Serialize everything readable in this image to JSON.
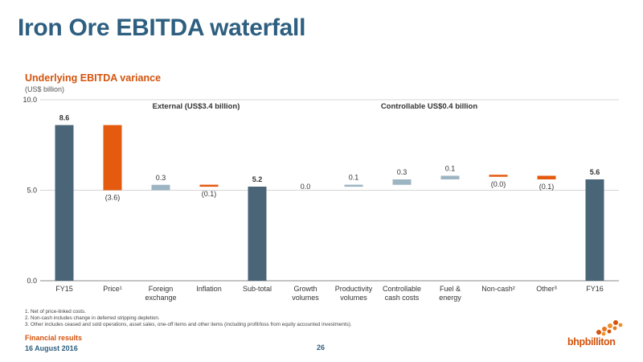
{
  "slide": {
    "title": "Iron Ore EBITDA waterfall",
    "subtitle": "Underlying EBITDA variance",
    "unit": "(US$ billion)",
    "footnotes": [
      "1.  Net of price-linked costs.",
      "2.  Non-cash includes change in deferred stripping depletion.",
      "3.  Other includes ceased and sold operations, asset sales, one-off items and other items (including profit/loss from equity accounted investments)."
    ],
    "footer_label": "Financial results",
    "footer_date": "16 August 2016",
    "page_number": "26",
    "logo_text": "bhpbilliton"
  },
  "chart_data": {
    "type": "waterfall",
    "title": "",
    "xlabel": "",
    "ylabel": "",
    "ylim": [
      0,
      10
    ],
    "yticks": [
      "0.0",
      "5.0",
      "10.0"
    ],
    "grid": true,
    "annotations": [
      {
        "text": "External (US$3.4 billion)",
        "group": "external"
      },
      {
        "text": "Controllable US$0.4 billion",
        "group": "controllable"
      }
    ],
    "colors": {
      "total": "#4a6478",
      "negative": "#e45a0e",
      "positive": "#9db5c3",
      "gridline": "#c8c8c8"
    },
    "bars": [
      {
        "category": "FY15",
        "kind": "total",
        "start": 0,
        "end": 8.6,
        "label": "8.6",
        "label_bold": true
      },
      {
        "category": "Price¹",
        "kind": "negative",
        "start": 8.6,
        "end": 5.0,
        "label": "(3.6)",
        "label_pos": "below"
      },
      {
        "category": "Foreign exchange",
        "kind": "positive",
        "start": 5.0,
        "end": 5.3,
        "label": "0.3"
      },
      {
        "category": "Inflation",
        "kind": "negative",
        "start": 5.3,
        "end": 5.2,
        "label": "(0.1)",
        "label_pos": "below"
      },
      {
        "category": "Sub-total",
        "kind": "total",
        "start": 0,
        "end": 5.2,
        "label": "5.2",
        "label_bold": true
      },
      {
        "category": "Growth volumes",
        "kind": "positive",
        "start": 5.2,
        "end": 5.2,
        "label": "0.0"
      },
      {
        "category": "Productivity volumes",
        "kind": "positive",
        "start": 5.2,
        "end": 5.3,
        "label": "0.1"
      },
      {
        "category": "Controllable cash costs",
        "kind": "positive",
        "start": 5.3,
        "end": 5.6,
        "label": "0.3"
      },
      {
        "category": "Fuel & energy",
        "kind": "positive",
        "start": 5.6,
        "end": 5.8,
        "label": "0.1"
      },
      {
        "category": "Non-cash²",
        "kind": "negative",
        "start": 5.8,
        "end": 5.8,
        "label": "(0.0)",
        "label_pos": "below"
      },
      {
        "category": "Other³",
        "kind": "negative",
        "start": 5.8,
        "end": 5.6,
        "label": "(0.1)",
        "label_pos": "below"
      },
      {
        "category": "FY16",
        "kind": "total",
        "start": 0,
        "end": 5.6,
        "label": "5.6",
        "label_bold": true
      }
    ]
  }
}
